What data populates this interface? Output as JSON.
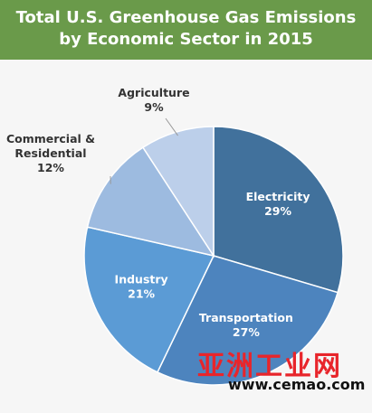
{
  "header": {
    "title_line1": "Total U.S. Greenhouse Gas Emissions",
    "title_line2": "by Economic Sector in 2015"
  },
  "chart_data": {
    "type": "pie",
    "title": "Total U.S. Greenhouse Gas Emissions by Economic Sector in 2015",
    "slices": [
      {
        "name": "Electricity",
        "value": 29,
        "label": "29%",
        "color": "#41719c"
      },
      {
        "name": "Transportation",
        "value": 27,
        "label": "27%",
        "color": "#4d84be"
      },
      {
        "name": "Industry",
        "value": 21,
        "label": "21%",
        "color": "#5b9bd5"
      },
      {
        "name": "Commercial & Residential",
        "value": 12,
        "label": "12%",
        "color": "#9dbbe0"
      },
      {
        "name": "Agriculture",
        "value": 9,
        "label": "9%",
        "color": "#bccfea"
      }
    ],
    "label_placement": "inside for large slices, outside with leader lines for small slices",
    "legend": "none"
  },
  "watermark": {
    "cn_text": "亚洲工业网",
    "url": "www.cemao.com",
    "cn_color": "#e8252b"
  }
}
